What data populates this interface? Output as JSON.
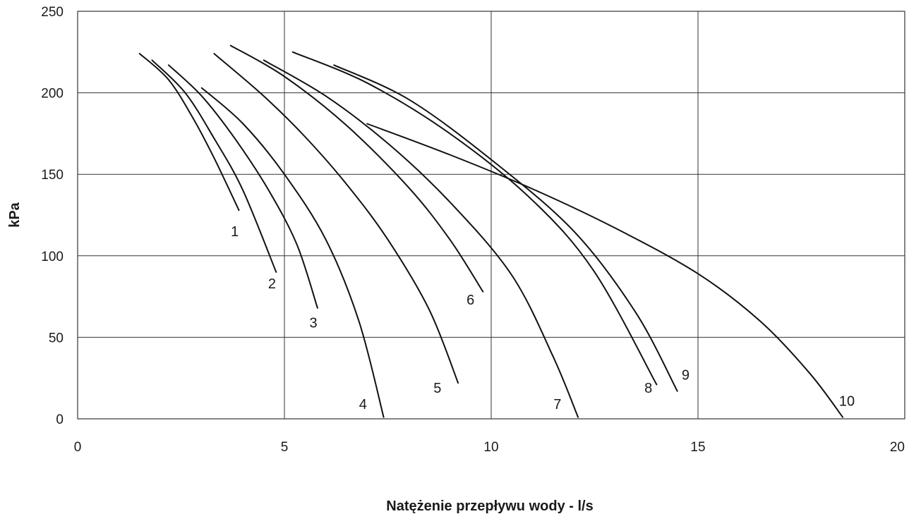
{
  "chart_data": {
    "type": "line",
    "title": "",
    "xlabel": "Natężenie przepływu wody - l/s",
    "ylabel": "kPa",
    "xlim": [
      0,
      20
    ],
    "ylim": [
      0,
      250
    ],
    "xticks": [
      0,
      5,
      10,
      15,
      20
    ],
    "yticks": [
      0,
      50,
      100,
      150,
      200,
      250
    ],
    "grid": true,
    "legend": "none",
    "series": [
      {
        "name": "1",
        "label_at": [
          3.8,
          115
        ],
        "points": [
          [
            1.5,
            224
          ],
          [
            2.2,
            208
          ],
          [
            2.8,
            184
          ],
          [
            3.3,
            160
          ],
          [
            3.9,
            128
          ]
        ]
      },
      {
        "name": "2",
        "label_at": [
          4.7,
          83
        ],
        "points": [
          [
            1.8,
            220
          ],
          [
            2.6,
            200
          ],
          [
            3.3,
            172
          ],
          [
            4.0,
            140
          ],
          [
            4.8,
            90
          ]
        ]
      },
      {
        "name": "3",
        "label_at": [
          5.7,
          59
        ],
        "points": [
          [
            2.2,
            217
          ],
          [
            3.0,
            198
          ],
          [
            3.8,
            172
          ],
          [
            4.6,
            141
          ],
          [
            5.3,
            107
          ],
          [
            5.8,
            68
          ]
        ]
      },
      {
        "name": "4",
        "label_at": [
          6.9,
          9
        ],
        "points": [
          [
            3.0,
            203
          ],
          [
            4.0,
            181
          ],
          [
            5.0,
            150
          ],
          [
            6.0,
            110
          ],
          [
            6.8,
            60
          ],
          [
            7.4,
            1
          ]
        ]
      },
      {
        "name": "5",
        "label_at": [
          8.7,
          19
        ],
        "points": [
          [
            3.3,
            224
          ],
          [
            4.5,
            198
          ],
          [
            5.5,
            173
          ],
          [
            6.5,
            144
          ],
          [
            7.5,
            110
          ],
          [
            8.5,
            67
          ],
          [
            9.2,
            22
          ]
        ]
      },
      {
        "name": "6",
        "label_at": [
          9.5,
          73
        ],
        "points": [
          [
            3.7,
            229
          ],
          [
            5.0,
            210
          ],
          [
            6.5,
            180
          ],
          [
            8.0,
            142
          ],
          [
            9.0,
            110
          ],
          [
            9.8,
            78
          ]
        ]
      },
      {
        "name": "7",
        "label_at": [
          11.6,
          9
        ],
        "points": [
          [
            4.5,
            220
          ],
          [
            6.0,
            198
          ],
          [
            7.5,
            169
          ],
          [
            9.0,
            133
          ],
          [
            10.5,
            88
          ],
          [
            11.5,
            38
          ],
          [
            12.1,
            1
          ]
        ]
      },
      {
        "name": "8",
        "label_at": [
          13.8,
          19
        ],
        "points": [
          [
            5.2,
            225
          ],
          [
            7.0,
            206
          ],
          [
            9.0,
            175
          ],
          [
            11.0,
            134
          ],
          [
            12.5,
            90
          ],
          [
            14.0,
            21
          ]
        ]
      },
      {
        "name": "9",
        "label_at": [
          14.7,
          27
        ],
        "points": [
          [
            6.2,
            217
          ],
          [
            8.0,
            196
          ],
          [
            10.0,
            159
          ],
          [
            12.0,
            115
          ],
          [
            13.5,
            65
          ],
          [
            14.5,
            17
          ]
        ]
      },
      {
        "name": "10",
        "label_at": [
          18.6,
          11
        ],
        "points": [
          [
            7.0,
            181
          ],
          [
            9.0,
            162
          ],
          [
            11.0,
            141
          ],
          [
            13.0,
            117
          ],
          [
            15.0,
            89
          ],
          [
            16.5,
            60
          ],
          [
            17.7,
            28
          ],
          [
            18.5,
            1
          ]
        ]
      }
    ]
  }
}
